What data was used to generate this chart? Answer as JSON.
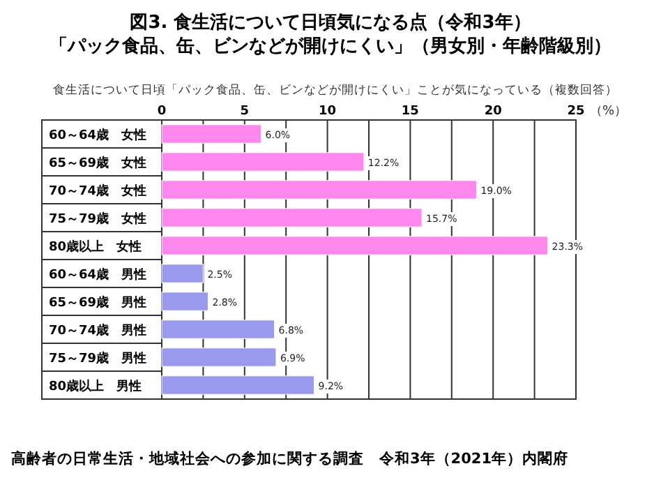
{
  "chart_data": {
    "type": "bar",
    "orientation": "horizontal",
    "title": "図3. 食生活について日頃気になる点（令和3年）",
    "subtitle": "「パック食品、缶、ビンなどが開けにくい」（男女別・年齢階級別）",
    "xlabel": "（%）",
    "categories": [
      "60～64歳　女性",
      "65～69歳　女性",
      "70～74歳　女性",
      "75～79歳　女性",
      "80歳以上　女性",
      "60～64歳　男性",
      "65～69歳　男性",
      "70～74歳　男性",
      "75～79歳　男性",
      "80歳以上　男性"
    ],
    "values": [
      6.0,
      12.2,
      19.0,
      15.7,
      23.3,
      2.5,
      2.8,
      6.8,
      6.9,
      9.2
    ],
    "colors": [
      "#ff88ee",
      "#ff88ee",
      "#ff88ee",
      "#ff88ee",
      "#ff88ee",
      "#9999ee",
      "#9999ee",
      "#9999ee",
      "#9999ee",
      "#9999ee"
    ],
    "value_labels": [
      "6.0%",
      "12.2%",
      "19.0%",
      "15.7%",
      "23.3%",
      "2.5%",
      "2.8%",
      "6.8%",
      "6.9%",
      "9.2%"
    ],
    "xlim": [
      0,
      25
    ],
    "xticks": [
      0,
      {
        "value": 2.5,
        "label": null
      },
      5,
      {
        "value": 7.5,
        "label": null
      },
      10,
      {
        "value": 12.5,
        "label": null
      },
      15,
      {
        "value": 17.5,
        "label": null
      },
      20,
      {
        "value": 22.5,
        "label": null
      },
      25
    ],
    "grid": "x",
    "annotations": [
      "食生活について日頃「パック食品、缶、ビンなどが開けにくい」ことが気になっている（複数回答）",
      "高齢者の日常生活・地域社会への参加に関する調査　令和3年（2021年）内閣府"
    ]
  }
}
